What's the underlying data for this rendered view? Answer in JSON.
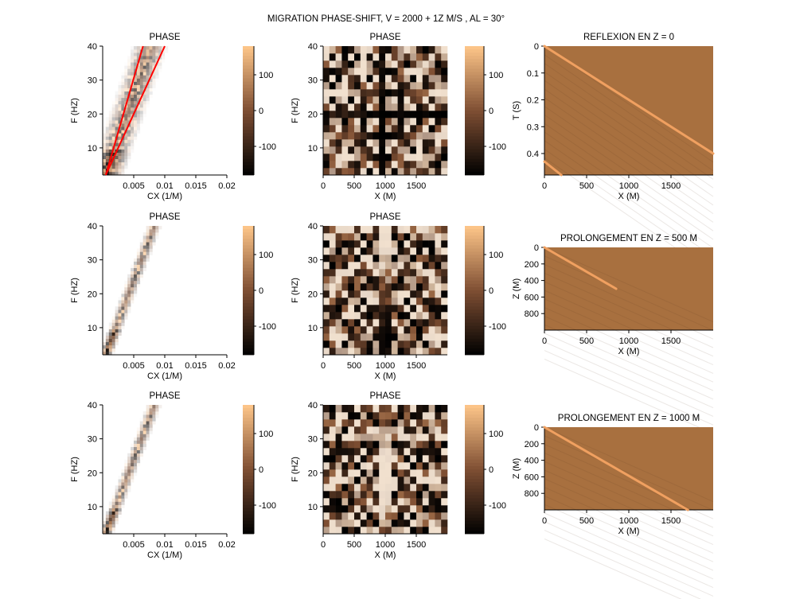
{
  "figure": {
    "suptitle": "MIGRATION PHASE-SHIFT, V = 2000 + 1Z M/S , AL = 30°"
  },
  "colors": {
    "background": "#ffffff",
    "red_line": "#ff0000",
    "cmap_low": "#000000",
    "cmap_mid": "#7f4f33",
    "cmap_high": "#ffc78a",
    "section_bg": "#a8703f",
    "event": "#f0a060"
  },
  "chart_data": [
    {
      "id": "r1c1",
      "type": "heatmap",
      "title": "PHASE",
      "xlabel": "CX (1/M)",
      "ylabel": "F (HZ)",
      "xlim": [
        0,
        0.02
      ],
      "ylim": [
        2,
        40
      ],
      "xticks": [
        0.005,
        0.01,
        0.015,
        0.02
      ],
      "yticks": [
        10,
        20,
        30,
        40
      ],
      "tick_labels_x": [
        "0.005",
        "0.01",
        "0.015",
        "0.02"
      ],
      "tick_labels_y": [
        "10",
        "20",
        "30",
        "40"
      ],
      "overlay_lines": [
        {
          "x": [
            0.0005,
            0.0065
          ],
          "y": [
            2,
            40
          ]
        },
        {
          "x": [
            0.0005,
            0.01
          ],
          "y": [
            2,
            40
          ]
        }
      ]
    },
    {
      "id": "r1c1cb",
      "type": "colorbar",
      "ticks": [
        100,
        0,
        -100
      ],
      "tick_labels": [
        "100",
        "0",
        "-100"
      ],
      "range": [
        -180,
        180
      ]
    },
    {
      "id": "r1c2",
      "type": "heatmap",
      "title": "PHASE",
      "xlabel": "X (M)",
      "ylabel": "F (HZ)",
      "xlim": [
        0,
        2000
      ],
      "ylim": [
        2,
        40
      ],
      "xticks": [
        0,
        500,
        1000,
        1500
      ],
      "yticks": [
        10,
        20,
        30,
        40
      ],
      "tick_labels_x": [
        "0",
        "500",
        "1000",
        "1500"
      ],
      "tick_labels_y": [
        "10",
        "20",
        "30",
        "40"
      ]
    },
    {
      "id": "r1c2cb",
      "type": "colorbar",
      "ticks": [
        100,
        0,
        -100
      ],
      "tick_labels": [
        "100",
        "0",
        "-100"
      ],
      "range": [
        -180,
        180
      ]
    },
    {
      "id": "r1c3",
      "type": "heatmap",
      "title": "REFLEXION EN Z = 0",
      "xlabel": "X (M)",
      "ylabel": "T (S)",
      "xlim": [
        0,
        2000
      ],
      "ylim": [
        0,
        0.48
      ],
      "y_reversed": true,
      "xticks": [
        0,
        500,
        1000,
        1500
      ],
      "yticks": [
        0,
        0.1,
        0.2,
        0.3,
        0.4
      ],
      "tick_labels_x": [
        "0",
        "500",
        "1000",
        "1500"
      ],
      "tick_labels_y": [
        "0",
        "0.1",
        "0.2",
        "0.3",
        "0.4"
      ],
      "events": [
        {
          "x": [
            0,
            2000
          ],
          "y": [
            0,
            0.4
          ]
        },
        {
          "x": [
            0,
            200
          ],
          "y": [
            0.43,
            0.48
          ]
        }
      ]
    },
    {
      "id": "r2c1",
      "type": "heatmap",
      "title": "PHASE",
      "xlabel": "CX (1/M)",
      "ylabel": "F (HZ)",
      "xlim": [
        0,
        0.02
      ],
      "ylim": [
        2,
        40
      ],
      "xticks": [
        0.005,
        0.01,
        0.015,
        0.02
      ],
      "yticks": [
        10,
        20,
        30,
        40
      ],
      "tick_labels_x": [
        "0.005",
        "0.01",
        "0.015",
        "0.02"
      ],
      "tick_labels_y": [
        "10",
        "20",
        "30",
        "40"
      ]
    },
    {
      "id": "r2c1cb",
      "type": "colorbar",
      "ticks": [
        100,
        0,
        -100
      ],
      "tick_labels": [
        "100",
        "0",
        "-100"
      ],
      "range": [
        -180,
        180
      ]
    },
    {
      "id": "r2c2",
      "type": "heatmap",
      "title": "PHASE",
      "xlabel": "X (M)",
      "ylabel": "F (HZ)",
      "xlim": [
        0,
        2000
      ],
      "ylim": [
        2,
        40
      ],
      "xticks": [
        0,
        500,
        1000,
        1500
      ],
      "yticks": [
        10,
        20,
        30,
        40
      ],
      "tick_labels_x": [
        "0",
        "500",
        "1000",
        "1500"
      ],
      "tick_labels_y": [
        "10",
        "20",
        "30",
        "40"
      ]
    },
    {
      "id": "r2c2cb",
      "type": "colorbar",
      "ticks": [
        100,
        0,
        -100
      ],
      "tick_labels": [
        "100",
        "0",
        "-100"
      ],
      "range": [
        -180,
        180
      ]
    },
    {
      "id": "r2c3",
      "type": "heatmap",
      "title": "PROLONGEMENT EN Z = 500 M",
      "xlabel": "X (M)",
      "ylabel": "Z (M)",
      "xlim": [
        0,
        2000
      ],
      "ylim": [
        0,
        1000
      ],
      "y_reversed": true,
      "xticks": [
        0,
        500,
        1000,
        1500
      ],
      "yticks": [
        0,
        200,
        400,
        600,
        800
      ],
      "tick_labels_x": [
        "0",
        "500",
        "1000",
        "1500"
      ],
      "tick_labels_y": [
        "0",
        "200",
        "400",
        "600",
        "800"
      ],
      "events": [
        {
          "x": [
            0,
            850
          ],
          "y": [
            0,
            500
          ]
        }
      ]
    },
    {
      "id": "r3c1",
      "type": "heatmap",
      "title": "PHASE",
      "xlabel": "CX (1/M)",
      "ylabel": "F (HZ)",
      "xlim": [
        0,
        0.02
      ],
      "ylim": [
        2,
        40
      ],
      "xticks": [
        0.005,
        0.01,
        0.015,
        0.02
      ],
      "yticks": [
        10,
        20,
        30,
        40
      ],
      "tick_labels_x": [
        "0.005",
        "0.01",
        "0.015",
        "0.02"
      ],
      "tick_labels_y": [
        "10",
        "20",
        "30",
        "40"
      ]
    },
    {
      "id": "r3c1cb",
      "type": "colorbar",
      "ticks": [
        100,
        0,
        -100
      ],
      "tick_labels": [
        "100",
        "0",
        "-100"
      ],
      "range": [
        -180,
        180
      ]
    },
    {
      "id": "r3c2",
      "type": "heatmap",
      "title": "PHASE",
      "xlabel": "X (M)",
      "ylabel": "F (HZ)",
      "xlim": [
        0,
        2000
      ],
      "ylim": [
        2,
        40
      ],
      "xticks": [
        0,
        500,
        1000,
        1500
      ],
      "yticks": [
        10,
        20,
        30,
        40
      ],
      "tick_labels_x": [
        "0",
        "500",
        "1000",
        "1500"
      ],
      "tick_labels_y": [
        "10",
        "20",
        "30",
        "40"
      ]
    },
    {
      "id": "r3c2cb",
      "type": "colorbar",
      "ticks": [
        100,
        0,
        -100
      ],
      "tick_labels": [
        "100",
        "0",
        "-100"
      ],
      "range": [
        -180,
        180
      ]
    },
    {
      "id": "r3c3",
      "type": "heatmap",
      "title": "PROLONGEMENT EN Z = 1000 M",
      "xlabel": "X (M)",
      "ylabel": "Z (M)",
      "xlim": [
        0,
        2000
      ],
      "ylim": [
        0,
        1000
      ],
      "y_reversed": true,
      "xticks": [
        0,
        500,
        1000,
        1500
      ],
      "yticks": [
        0,
        200,
        400,
        600,
        800
      ],
      "tick_labels_x": [
        "0",
        "500",
        "1000",
        "1500"
      ],
      "tick_labels_y": [
        "0",
        "200",
        "400",
        "600",
        "800"
      ],
      "events": [
        {
          "x": [
            0,
            1700
          ],
          "y": [
            0,
            1000
          ]
        }
      ]
    }
  ]
}
